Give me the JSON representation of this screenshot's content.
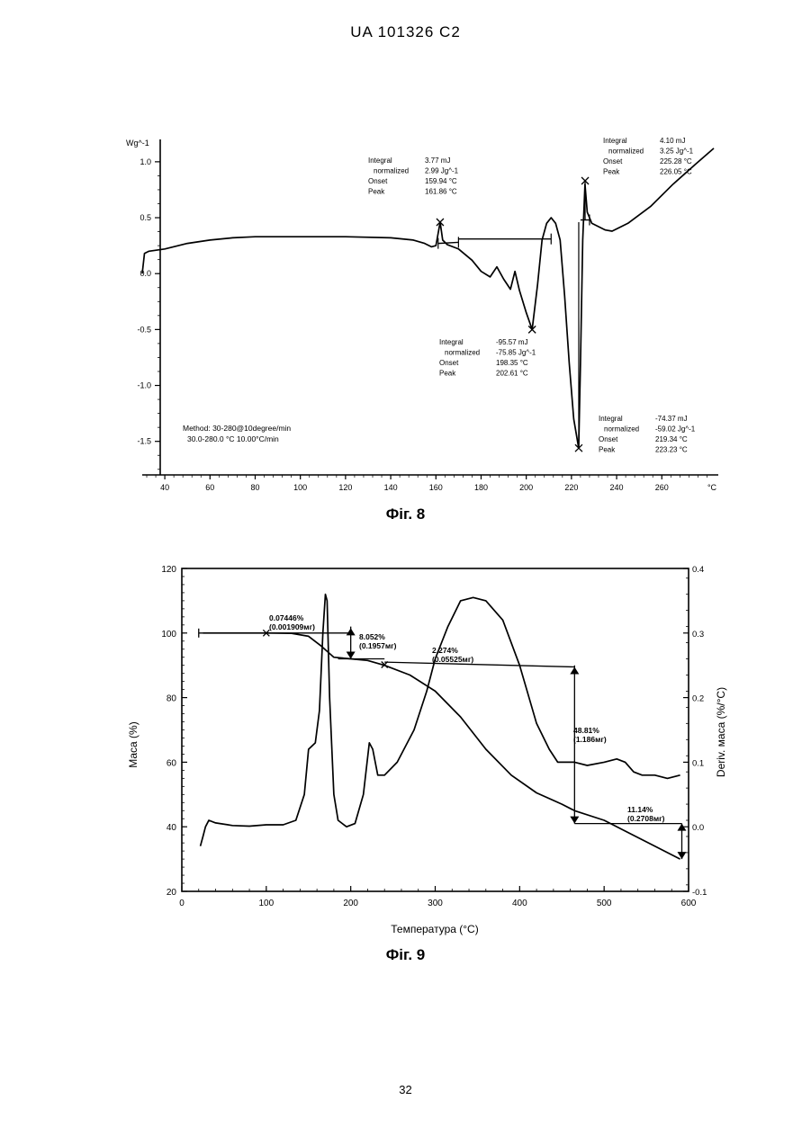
{
  "header": {
    "patent_id": "UA   101326   C2"
  },
  "page_number": "32",
  "chart_data": [
    {
      "type": "line",
      "caption": "Фіг. 8",
      "ylabel": "Wg^-1",
      "xunit": "°C",
      "xlim": [
        30,
        285
      ],
      "ylim": [
        -1.8,
        1.2
      ],
      "xticks": [
        40,
        60,
        80,
        100,
        120,
        140,
        160,
        180,
        200,
        220,
        240,
        260
      ],
      "yticks": [
        1.0,
        0.5,
        0.0,
        -0.5,
        -1.0,
        -1.5
      ],
      "ytick_labels": [
        "1.0",
        "0.5",
        "0.0",
        "-0.5",
        "-1.0",
        "-1.5"
      ],
      "series": [
        {
          "values": [
            [
              30,
              0.0
            ],
            [
              31,
              0.18
            ],
            [
              33,
              0.2
            ],
            [
              40,
              0.22
            ],
            [
              50,
              0.27
            ],
            [
              60,
              0.3
            ],
            [
              70,
              0.32
            ],
            [
              80,
              0.33
            ],
            [
              100,
              0.33
            ],
            [
              120,
              0.33
            ],
            [
              140,
              0.32
            ],
            [
              150,
              0.3
            ],
            [
              155,
              0.27
            ],
            [
              158,
              0.24
            ],
            [
              160,
              0.25
            ],
            [
              161.9,
              0.46
            ],
            [
              163,
              0.3
            ],
            [
              165,
              0.26
            ],
            [
              170,
              0.22
            ],
            [
              176,
              0.12
            ],
            [
              180,
              0.02
            ],
            [
              184,
              -0.03
            ],
            [
              187,
              0.06
            ],
            [
              190,
              -0.05
            ],
            [
              193,
              -0.14
            ],
            [
              195,
              0.02
            ],
            [
              197,
              -0.15
            ],
            [
              200,
              -0.35
            ],
            [
              202.6,
              -0.5
            ],
            [
              205,
              -0.1
            ],
            [
              207,
              0.3
            ],
            [
              209,
              0.45
            ],
            [
              211,
              0.5
            ],
            [
              213,
              0.45
            ],
            [
              215,
              0.3
            ],
            [
              217,
              -0.2
            ],
            [
              219,
              -0.8
            ],
            [
              221,
              -1.3
            ],
            [
              223.2,
              -1.56
            ],
            [
              224,
              -0.8
            ],
            [
              225,
              0.3
            ],
            [
              226,
              0.8
            ],
            [
              227,
              0.55
            ],
            [
              229,
              0.45
            ],
            [
              232,
              0.42
            ],
            [
              235,
              0.39
            ],
            [
              238,
              0.38
            ],
            [
              245,
              0.45
            ],
            [
              255,
              0.6
            ],
            [
              265,
              0.8
            ],
            [
              275,
              0.98
            ],
            [
              283,
              1.12
            ]
          ]
        }
      ],
      "baselines": [
        {
          "x": [
            161,
            170
          ],
          "y": [
            0.27,
            0.28
          ]
        },
        {
          "x": [
            170,
            211
          ],
          "y": [
            0.31,
            0.31
          ]
        },
        {
          "x": [
            224,
            228
          ],
          "y": [
            0.48,
            0.48
          ]
        }
      ],
      "peak_marks": [
        {
          "x": 161.86,
          "y": 0.46
        },
        {
          "x": 202.6,
          "y": -0.5
        },
        {
          "x": 223.23,
          "y": -1.56
        },
        {
          "x": 226.05,
          "y": 0.83
        }
      ],
      "annotations": [
        {
          "rows": [
            [
              "Integral",
              "3.77 mJ"
            ],
            [
              "normalized",
              "2.99 Jg^-1"
            ],
            [
              "Onset",
              "159.94 °C"
            ],
            [
              "Peak",
              "161.86 °C"
            ]
          ]
        },
        {
          "rows": [
            [
              "Integral",
              "4.10 mJ"
            ],
            [
              "normalized",
              "3.25 Jg^-1"
            ],
            [
              "Onset",
              "225.28 °C"
            ],
            [
              "Peak",
              "226.05 °C"
            ]
          ]
        },
        {
          "rows": [
            [
              "Integral",
              "-95.57 mJ"
            ],
            [
              "normalized",
              "-75.85 Jg^-1"
            ],
            [
              "Onset",
              "198.35 °C"
            ],
            [
              "Peak",
              "202.61 °C"
            ]
          ]
        },
        {
          "rows": [
            [
              "Integral",
              "-74.37 mJ"
            ],
            [
              "normalized",
              "-59.02 Jg^-1"
            ],
            [
              "Onset",
              "219.34 °C"
            ],
            [
              "Peak",
              "223.23 °C"
            ]
          ]
        }
      ],
      "method": [
        "Method: 30-280@10degree/min",
        "30.0-280.0 °C 10.00°C/min"
      ]
    },
    {
      "type": "line",
      "caption": "Фіг. 9",
      "xlabel": "Температура (°C)",
      "ylabel": "Маса (%)",
      "y2label": "Deriv.   маса (%/°C)",
      "xlim": [
        0,
        600
      ],
      "ylim": [
        20,
        120
      ],
      "y2lim": [
        -0.1,
        0.4
      ],
      "xticks": [
        0,
        100,
        200,
        300,
        400,
        500,
        600
      ],
      "yticks": [
        20,
        40,
        60,
        80,
        100,
        120
      ],
      "y2ticks": [
        -0.1,
        0.0,
        0.1,
        0.2,
        0.3,
        0.4
      ],
      "y2tick_labels": [
        "-0.1",
        "0.0",
        "0.1",
        "0.2",
        "0.3",
        "0.4"
      ],
      "series": [
        {
          "name": "Маса",
          "axis": "left",
          "values": [
            [
              25,
              100
            ],
            [
              50,
              100
            ],
            [
              100,
              100
            ],
            [
              130,
              99.9
            ],
            [
              150,
              99
            ],
            [
              165,
              96
            ],
            [
              180,
              92.5
            ],
            [
              200,
              92
            ],
            [
              220,
              91.5
            ],
            [
              240,
              90
            ],
            [
              270,
              87
            ],
            [
              300,
              82
            ],
            [
              330,
              74
            ],
            [
              360,
              64
            ],
            [
              390,
              56
            ],
            [
              420,
              50.5
            ],
            [
              450,
              47
            ],
            [
              465,
              45
            ],
            [
              500,
              42
            ],
            [
              530,
              38
            ],
            [
              560,
              34
            ],
            [
              590,
              30
            ]
          ]
        },
        {
          "name": "Deriv. маса",
          "axis": "right",
          "values": [
            [
              22,
              -0.03
            ],
            [
              25,
              -0.015
            ],
            [
              28,
              0.0
            ],
            [
              32,
              0.01
            ],
            [
              40,
              0.006
            ],
            [
              60,
              0.002
            ],
            [
              80,
              0.001
            ],
            [
              100,
              0.003
            ],
            [
              120,
              0.003
            ],
            [
              135,
              0.01
            ],
            [
              145,
              0.05
            ],
            [
              150,
              0.12
            ],
            [
              158,
              0.13
            ],
            [
              163,
              0.18
            ],
            [
              167,
              0.3
            ],
            [
              170,
              0.36
            ],
            [
              172,
              0.35
            ],
            [
              175,
              0.2
            ],
            [
              180,
              0.05
            ],
            [
              185,
              0.01
            ],
            [
              195,
              0.0
            ],
            [
              205,
              0.005
            ],
            [
              215,
              0.05
            ],
            [
              222,
              0.13
            ],
            [
              226,
              0.12
            ],
            [
              232,
              0.08
            ],
            [
              240,
              0.08
            ],
            [
              255,
              0.1
            ],
            [
              275,
              0.15
            ],
            [
              290,
              0.21
            ],
            [
              300,
              0.26
            ],
            [
              315,
              0.31
            ],
            [
              330,
              0.35
            ],
            [
              345,
              0.355
            ],
            [
              360,
              0.35
            ],
            [
              380,
              0.32
            ],
            [
              400,
              0.25
            ],
            [
              420,
              0.16
            ],
            [
              435,
              0.12
            ],
            [
              445,
              0.1
            ],
            [
              465,
              0.1
            ],
            [
              480,
              0.095
            ],
            [
              500,
              0.1
            ],
            [
              515,
              0.105
            ],
            [
              525,
              0.1
            ],
            [
              535,
              0.085
            ],
            [
              545,
              0.08
            ],
            [
              560,
              0.08
            ],
            [
              575,
              0.075
            ],
            [
              590,
              0.08
            ]
          ]
        }
      ],
      "annotations": [
        {
          "lines": [
            "0.07446%",
            "(0.001909мг)"
          ]
        },
        {
          "lines": [
            "8.052%",
            "(0.1957мг)"
          ]
        },
        {
          "lines": [
            "2.274%",
            "(0.05525мг)"
          ]
        },
        {
          "lines": [
            "48.81%",
            "(1.186мг)"
          ]
        },
        {
          "lines": [
            "11.14%",
            "(0.2708мг)"
          ]
        }
      ]
    }
  ]
}
